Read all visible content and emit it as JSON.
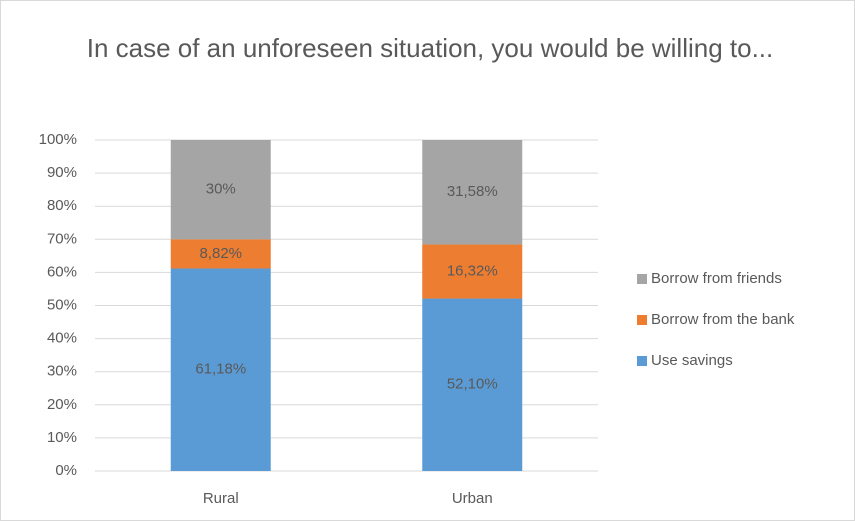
{
  "chart_data": {
    "type": "stacked_bar",
    "title": "In case of an unforeseen situation, you would be willing to...",
    "categories": [
      "Rural",
      "Urban"
    ],
    "series": [
      {
        "name": "Use savings",
        "color": "#5b9bd5",
        "values": [
          61.18,
          52.1
        ],
        "value_labels": [
          "61,18%",
          "52,10%"
        ]
      },
      {
        "name": "Borrow from the bank",
        "color": "#ed7d31",
        "values": [
          8.82,
          16.32
        ],
        "value_labels": [
          "8,82%",
          "16,32%"
        ]
      },
      {
        "name": "Borrow from friends",
        "color": "#a5a5a5",
        "values": [
          30,
          31.58
        ],
        "value_labels": [
          "30%",
          "31,58%"
        ]
      }
    ],
    "ylim": [
      0,
      100
    ],
    "yticks": [
      {
        "value": 0,
        "label": "0%"
      },
      {
        "value": 10,
        "label": "10%"
      },
      {
        "value": 20,
        "label": "20%"
      },
      {
        "value": 30,
        "label": "30%"
      },
      {
        "value": 40,
        "label": "40%"
      },
      {
        "value": 50,
        "label": "50%"
      },
      {
        "value": 60,
        "label": "60%"
      },
      {
        "value": 70,
        "label": "70%"
      },
      {
        "value": 80,
        "label": "80%"
      },
      {
        "value": 90,
        "label": "90%"
      },
      {
        "value": 100,
        "label": "100%"
      }
    ],
    "grid": true,
    "legend": "right"
  }
}
